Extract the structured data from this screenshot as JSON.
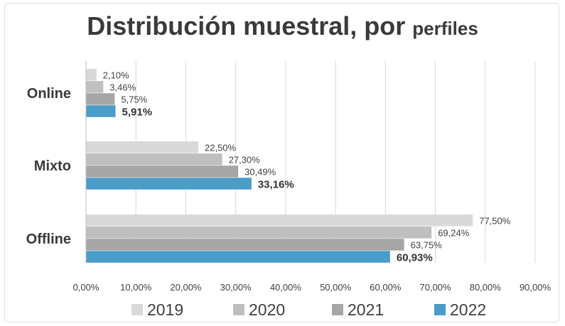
{
  "chart_data": {
    "type": "bar",
    "orientation": "horizontal",
    "title_main": "Distribución muestral, por",
    "title_tail": "perfiles",
    "categories": [
      "Online",
      "Mixto",
      "Offline"
    ],
    "series": [
      {
        "name": "2019",
        "color": "#d9d9d9",
        "values": [
          2.1,
          22.5,
          77.5
        ],
        "labels": [
          "2,10%",
          "22,50%",
          "77,50%"
        ]
      },
      {
        "name": "2020",
        "color": "#bfbfbf",
        "values": [
          3.46,
          27.3,
          69.24
        ],
        "labels": [
          "3,46%",
          "27,30%",
          "69,24%"
        ]
      },
      {
        "name": "2021",
        "color": "#a6a6a6",
        "values": [
          5.75,
          30.49,
          63.75
        ],
        "labels": [
          "5,75%",
          "30,49%",
          "63,75%"
        ]
      },
      {
        "name": "2022",
        "color": "#4a9cc9",
        "values": [
          5.91,
          33.16,
          60.93
        ],
        "labels": [
          "5,91%",
          "33,16%",
          "60,93%"
        ],
        "bold_labels": true
      }
    ],
    "xlim": [
      0,
      90
    ],
    "xticks": [
      0,
      10,
      20,
      30,
      40,
      50,
      60,
      70,
      80,
      90
    ],
    "xtick_labels": [
      "0,00%",
      "10,00%",
      "20,00%",
      "30,00%",
      "40,00%",
      "50,00%",
      "60,00%",
      "70,00%",
      "80,00%",
      "90,00%"
    ],
    "grid": "vertical",
    "legend": "bottom"
  }
}
